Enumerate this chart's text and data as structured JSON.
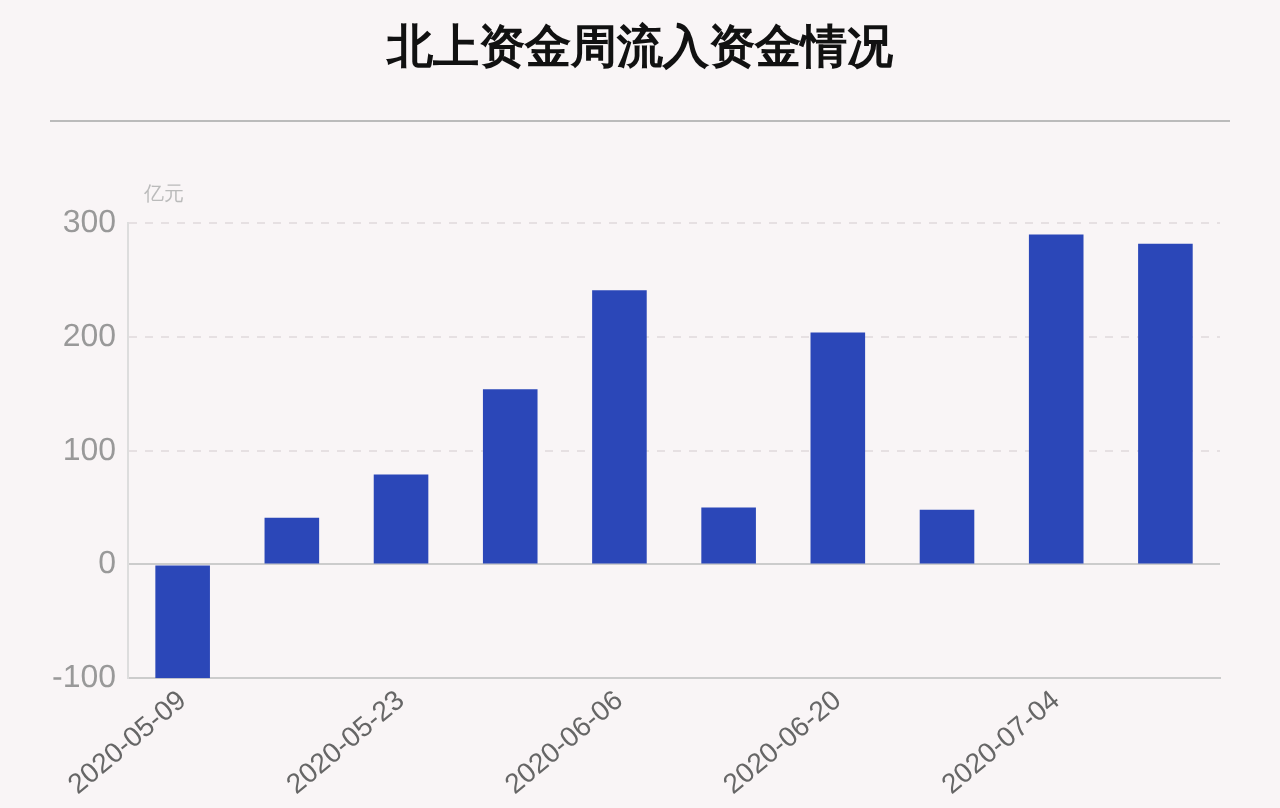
{
  "chart_data": {
    "type": "bar",
    "title": "北上资金周流入资金情况",
    "ylabel": "亿元",
    "categories": [
      "2020-05-09",
      null,
      "2020-05-23",
      null,
      "2020-06-06",
      null,
      "2020-06-20",
      null,
      "2020-07-04",
      null
    ],
    "values": [
      -100,
      41,
      79,
      154,
      241,
      50,
      204,
      48,
      290,
      282
    ],
    "color": "#2b47b8",
    "ylim": [
      -100,
      300
    ],
    "yticks": [
      -100,
      0,
      100,
      200,
      300
    ],
    "grid": "y"
  }
}
